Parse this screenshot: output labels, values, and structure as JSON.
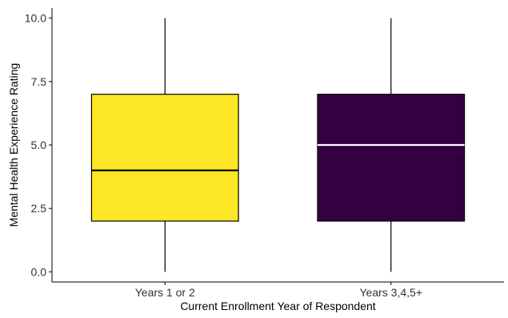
{
  "chart_data": {
    "type": "box",
    "title": "",
    "xlabel": "Current Enrollment Year of Respondent",
    "ylabel": "Mental Health Experience Rating",
    "ylim": [
      -0.4,
      10.4
    ],
    "yticks": [
      0.0,
      2.5,
      5.0,
      7.5,
      10.0
    ],
    "ytick_labels": [
      "0.0",
      "2.5",
      "5.0",
      "7.5",
      "10.0"
    ],
    "grid": false,
    "legend": "none",
    "categories": [
      "Years 1 or 2",
      "Years 3,4,5+"
    ],
    "boxes": [
      {
        "category": "Years 1 or 2",
        "min": 0.0,
        "q1": 2.0,
        "median": 4.0,
        "q3": 7.0,
        "max": 10.0,
        "fill": "#fde725",
        "median_color": "#000000"
      },
      {
        "category": "Years 3,4,5+",
        "min": 0.0,
        "q1": 2.0,
        "median": 5.0,
        "q3": 7.0,
        "max": 10.0,
        "fill": "#340042",
        "median_color": "#ffffff"
      }
    ]
  }
}
